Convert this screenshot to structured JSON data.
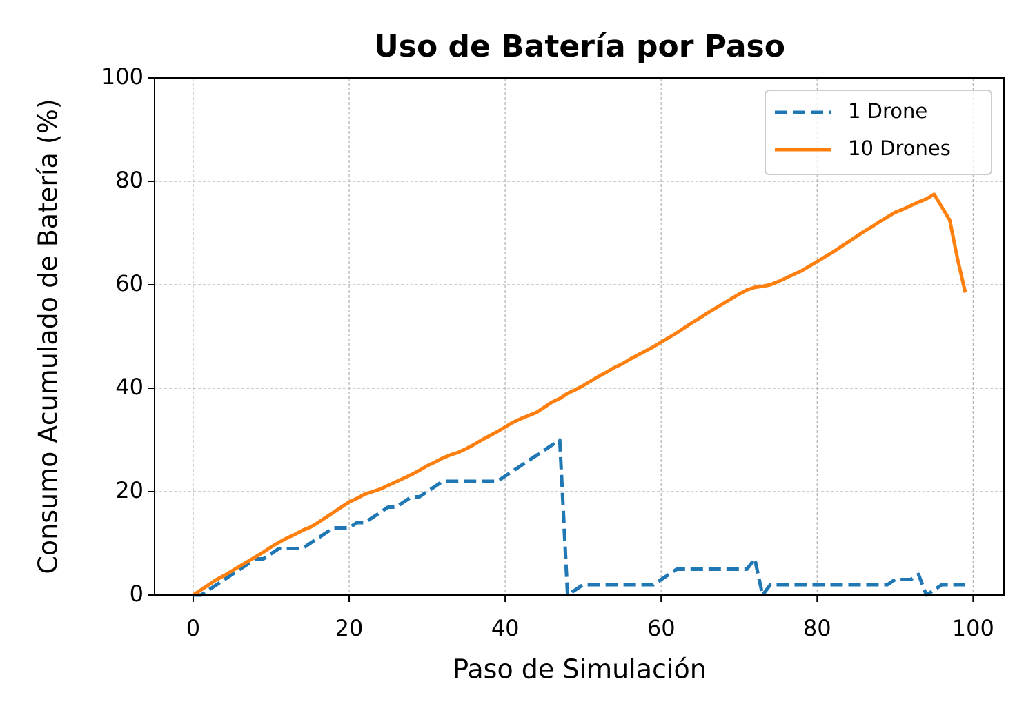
{
  "chart_data": {
    "type": "line",
    "title": "Uso de Batería por Paso",
    "x_label": "Paso de Simulación",
    "y_label": "Consumo Acumulado de Batería (%)",
    "x": [
      0,
      1,
      2,
      3,
      4,
      5,
      6,
      7,
      8,
      9,
      10,
      11,
      12,
      13,
      14,
      15,
      16,
      17,
      18,
      19,
      20,
      21,
      22,
      23,
      24,
      25,
      26,
      27,
      28,
      29,
      30,
      31,
      32,
      33,
      34,
      35,
      36,
      37,
      38,
      39,
      40,
      41,
      42,
      43,
      44,
      45,
      46,
      47,
      48,
      49,
      50,
      51,
      52,
      53,
      54,
      55,
      56,
      57,
      58,
      59,
      60,
      61,
      62,
      63,
      64,
      65,
      66,
      67,
      68,
      69,
      70,
      71,
      72,
      73,
      74,
      75,
      76,
      77,
      78,
      79,
      80,
      81,
      82,
      83,
      84,
      85,
      86,
      87,
      88,
      89,
      90,
      91,
      92,
      93,
      94,
      95,
      96,
      97,
      98,
      99
    ],
    "series": [
      {
        "name": "1 Drone",
        "color": "#1f77b4",
        "dash": true,
        "values": [
          0,
          0,
          1,
          2,
          3,
          4,
          5,
          6,
          7,
          7,
          8,
          9,
          9,
          9,
          9,
          10,
          11,
          12,
          13,
          13,
          13,
          14,
          14,
          15,
          16,
          17,
          17,
          18,
          19,
          19,
          20,
          21,
          22,
          22,
          22,
          22,
          22,
          22,
          22,
          22,
          23,
          24,
          25,
          26,
          27,
          28,
          29,
          30,
          0,
          1,
          2,
          2,
          2,
          2,
          2,
          2,
          2,
          2,
          2,
          2,
          3,
          4,
          5,
          5,
          5,
          5,
          5,
          5,
          5,
          5,
          5,
          5,
          7,
          0,
          2,
          2,
          2,
          2,
          2,
          2,
          2,
          2,
          2,
          2,
          2,
          2,
          2,
          2,
          2,
          2,
          3,
          3,
          3,
          4,
          0,
          1,
          2,
          2,
          2,
          2
        ]
      },
      {
        "name": "10 Drones",
        "color": "#ff7f0e",
        "dash": false,
        "values": [
          0,
          1,
          2,
          3,
          3.8,
          4.7,
          5.6,
          6.5,
          7.4,
          8.3,
          9.3,
          10.2,
          11,
          11.7,
          12.5,
          13.1,
          14,
          15,
          16,
          17,
          18,
          18.7,
          19.5,
          20,
          20.5,
          21.2,
          21.9,
          22.6,
          23.3,
          24.1,
          25,
          25.7,
          26.5,
          27.1,
          27.6,
          28.3,
          29.1,
          30,
          30.8,
          31.6,
          32.5,
          33.4,
          34.1,
          34.7,
          35.3,
          36.3,
          37.3,
          38,
          39,
          39.7,
          40.5,
          41.4,
          42.3,
          43.1,
          44,
          44.7,
          45.6,
          46.4,
          47.2,
          48,
          48.9,
          49.8,
          50.7,
          51.7,
          52.7,
          53.6,
          54.6,
          55.5,
          56.4,
          57.3,
          58.2,
          59,
          59.5,
          59.7,
          60,
          60.6,
          61.3,
          62,
          62.7,
          63.6,
          64.5,
          65.4,
          66.3,
          67.3,
          68.3,
          69.3,
          70.3,
          71.2,
          72.2,
          73.1,
          74,
          74.6,
          75.3,
          76,
          76.6,
          77.5,
          75,
          72.5,
          65,
          58.5
        ]
      }
    ],
    "xlim": [
      -4.95,
      103.95
    ],
    "xticks": [
      0,
      20,
      40,
      60,
      80,
      100
    ],
    "ylim": [
      0,
      100
    ],
    "yticks": [
      0,
      20,
      40,
      60,
      80,
      100
    ],
    "grid": true,
    "legend": "upper right"
  }
}
